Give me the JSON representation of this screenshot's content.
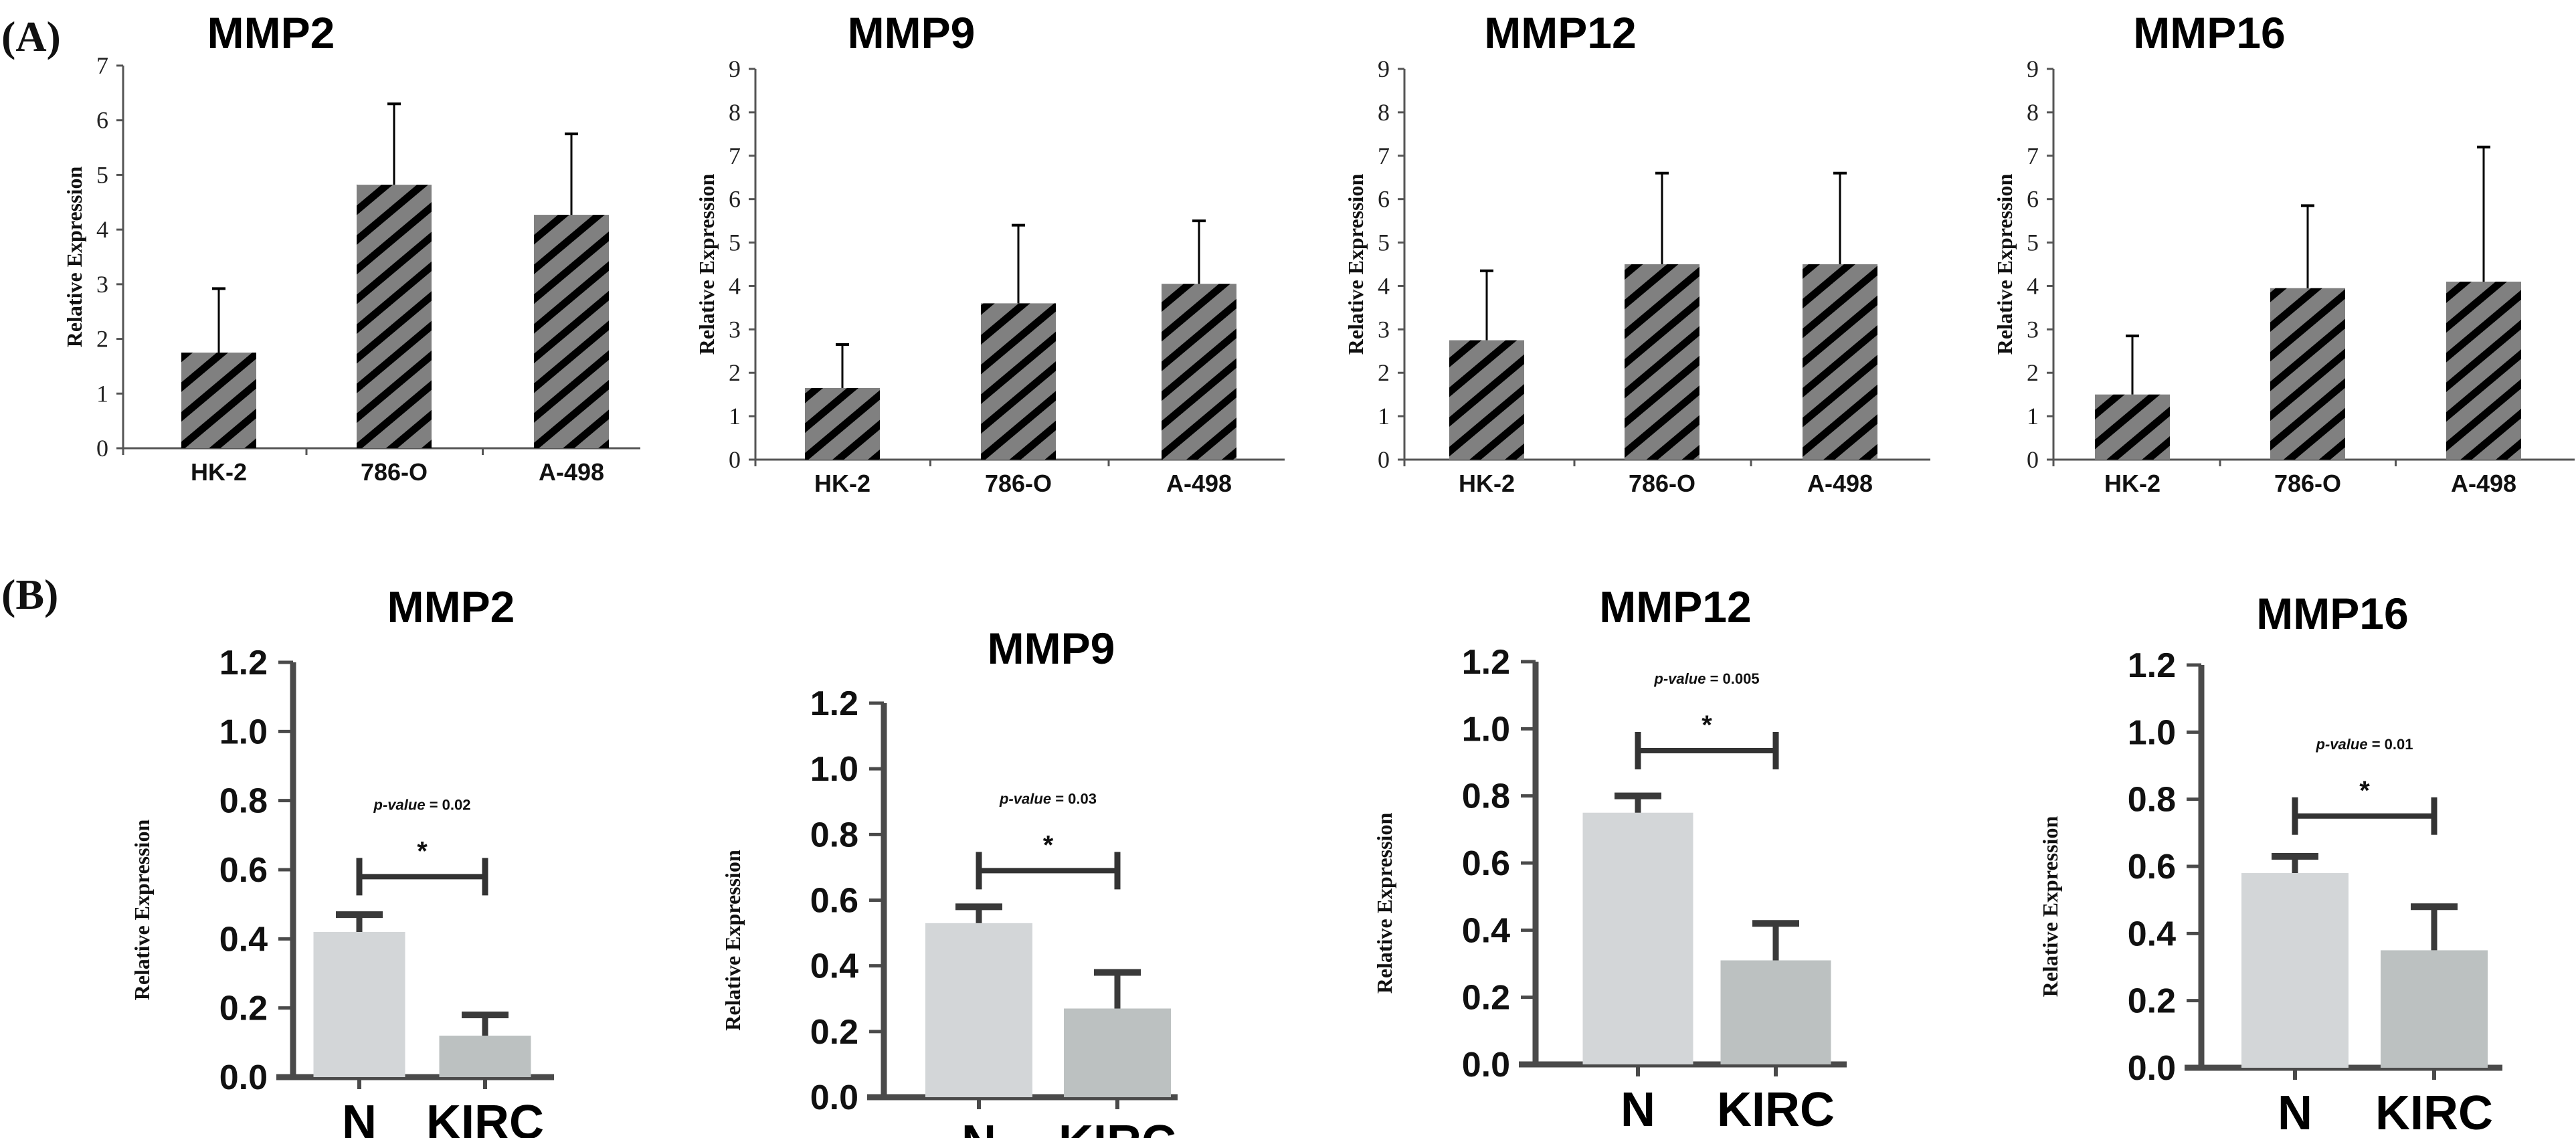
{
  "panel_labels": [
    "(A)",
    "(B)"
  ],
  "colors": {
    "hatch_fill": "#808080",
    "hatch_stripe": "#000000",
    "bar_normal": "#d3d6d8",
    "bar_kirc": "#bcc1c1",
    "axis_A": "#555555",
    "axis_B": "#4a4a4a"
  },
  "chart_data": [
    {
      "panel": "A",
      "type": "bar",
      "title": "MMP2",
      "ylabel": "Relative Expression",
      "xlabel": "",
      "categories": [
        "HK-2",
        "786-O",
        "A-498"
      ],
      "values": [
        1.75,
        4.82,
        4.27
      ],
      "error_upper": [
        2.92,
        6.3,
        5.75
      ],
      "ylim": [
        0,
        7
      ],
      "yticks": [
        "0",
        "1",
        "2",
        "3",
        "4",
        "5",
        "6",
        "7"
      ],
      "pattern": "diagonal-hatch",
      "grid": false
    },
    {
      "panel": "A",
      "type": "bar",
      "title": "MMP9",
      "ylabel": "Relative Expression",
      "xlabel": "",
      "categories": [
        "HK-2",
        "786-O",
        "A-498"
      ],
      "values": [
        1.65,
        3.6,
        4.05
      ],
      "error_upper": [
        2.65,
        5.4,
        5.5
      ],
      "ylim": [
        0,
        9
      ],
      "yticks": [
        "0",
        "1",
        "2",
        "3",
        "4",
        "5",
        "6",
        "7",
        "8",
        "9"
      ],
      "pattern": "diagonal-hatch",
      "grid": false
    },
    {
      "panel": "A",
      "type": "bar",
      "title": "MMP12",
      "ylabel": "Relative Expression",
      "xlabel": "",
      "categories": [
        "HK-2",
        "786-O",
        "A-498"
      ],
      "values": [
        2.75,
        4.5,
        4.5
      ],
      "error_upper": [
        4.35,
        6.6,
        6.6
      ],
      "ylim": [
        0,
        9
      ],
      "yticks": [
        "0",
        "1",
        "2",
        "3",
        "4",
        "5",
        "6",
        "7",
        "8",
        "9"
      ],
      "pattern": "diagonal-hatch",
      "grid": false
    },
    {
      "panel": "A",
      "type": "bar",
      "title": "MMP16",
      "ylabel": "Relative Expression",
      "xlabel": "",
      "categories": [
        "HK-2",
        "786-O",
        "A-498"
      ],
      "values": [
        1.5,
        3.95,
        4.1
      ],
      "error_upper": [
        2.85,
        5.85,
        7.2
      ],
      "ylim": [
        0,
        9
      ],
      "yticks": [
        "0",
        "1",
        "2",
        "3",
        "4",
        "5",
        "6",
        "7",
        "8",
        "9"
      ],
      "pattern": "diagonal-hatch",
      "grid": false
    },
    {
      "panel": "B",
      "type": "bar",
      "title": "MMP2",
      "ylabel": "Relative Expression",
      "xlabel": "",
      "categories": [
        "N",
        "KIRC"
      ],
      "values": [
        0.42,
        0.12
      ],
      "error_upper": [
        0.47,
        0.18
      ],
      "ylim": [
        0,
        1.2
      ],
      "yticks": [
        "0.0",
        "0.2",
        "0.4",
        "0.6",
        "0.8",
        "1.0",
        "1.2"
      ],
      "p_value_label": "p-value",
      "p_value_text": "= 0.02",
      "significance": "*",
      "bracket_y": 0.58,
      "grid": false
    },
    {
      "panel": "B",
      "type": "bar",
      "title": "MMP9",
      "ylabel": "Relative Expression",
      "xlabel": "",
      "categories": [
        "N",
        "KIRC"
      ],
      "values": [
        0.53,
        0.27
      ],
      "error_upper": [
        0.58,
        0.38
      ],
      "ylim": [
        0,
        1.2
      ],
      "yticks": [
        "0.0",
        "0.2",
        "0.4",
        "0.6",
        "0.8",
        "1.0",
        "1.2"
      ],
      "p_value_label": "p-value",
      "p_value_text": "= 0.03",
      "significance": "*",
      "bracket_y": 0.69,
      "grid": false
    },
    {
      "panel": "B",
      "type": "bar",
      "title": "MMP12",
      "ylabel": "Relative Expression",
      "xlabel": "",
      "categories": [
        "N",
        "KIRC"
      ],
      "values": [
        0.75,
        0.31
      ],
      "error_upper": [
        0.8,
        0.42
      ],
      "ylim": [
        0,
        1.2
      ],
      "yticks": [
        "0.0",
        "0.2",
        "0.4",
        "0.6",
        "0.8",
        "1.0",
        "1.2"
      ],
      "p_value_label": "p-value",
      "p_value_text": "= 0.005",
      "significance": "*",
      "bracket_y": 0.935,
      "grid": false
    },
    {
      "panel": "B",
      "type": "bar",
      "title": "MMP16",
      "ylabel": "Relative Expression",
      "xlabel": "",
      "categories": [
        "N",
        "KIRC"
      ],
      "values": [
        0.58,
        0.35
      ],
      "error_upper": [
        0.63,
        0.48
      ],
      "ylim": [
        0,
        1.2
      ],
      "yticks": [
        "0.0",
        "0.2",
        "0.4",
        "0.6",
        "0.8",
        "1.0",
        "1.2"
      ],
      "p_value_label": "p-value",
      "p_value_text": "= 0.01",
      "significance": "*",
      "bracket_y": 0.75,
      "grid": false
    }
  ]
}
